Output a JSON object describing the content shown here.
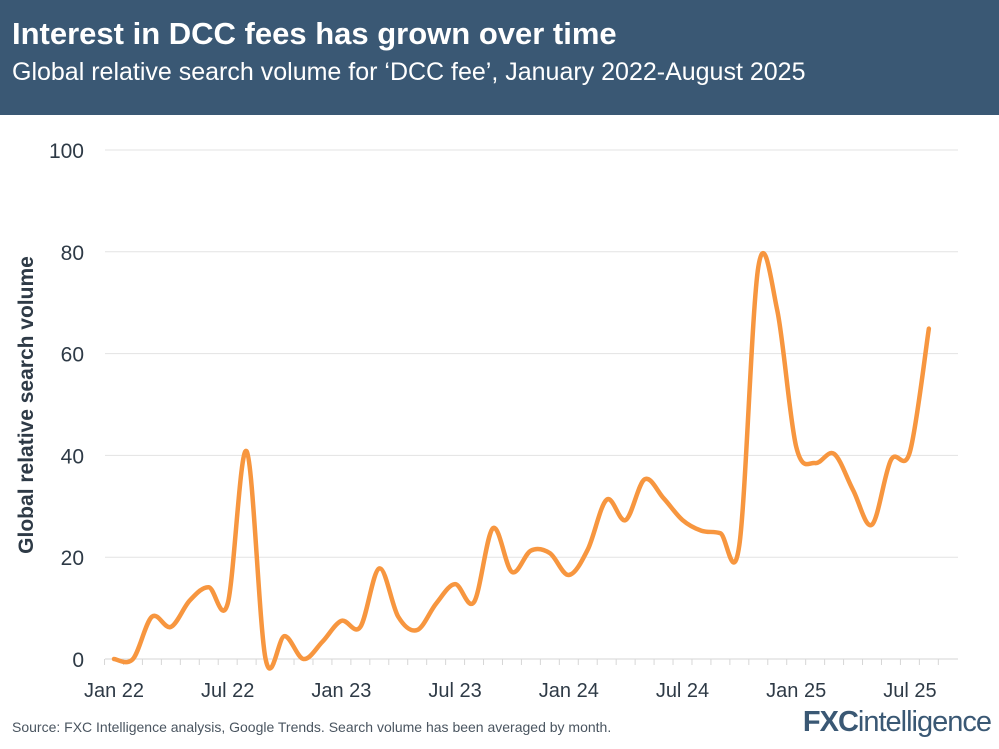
{
  "header": {
    "title": "Interest in DCC fees has grown over time",
    "subtitle": "Global relative search volume for ‘DCC fee’, January 2022-August 2025"
  },
  "footer": {
    "source": "Source: FXC Intelligence analysis, Google Trends. Search volume has been averaged by month.",
    "logo_bold": "FXC",
    "logo_light": "intelligence"
  },
  "colors": {
    "header_bg": "#3a5874",
    "line": "#f7963f",
    "grid": "#e3e3e3",
    "text": "#2e3a46"
  },
  "chart_data": {
    "type": "line",
    "title": "Interest in DCC fees has grown over time",
    "xlabel": "",
    "ylabel": "Global relative search volume",
    "ylim": [
      0,
      100
    ],
    "yticks": [
      0,
      20,
      40,
      60,
      80,
      100
    ],
    "xtick_labels": [
      {
        "index": 0,
        "label": "Jan 22"
      },
      {
        "index": 6,
        "label": "Jul 22"
      },
      {
        "index": 12,
        "label": "Jan 23"
      },
      {
        "index": 18,
        "label": "Jul 23"
      },
      {
        "index": 24,
        "label": "Jan 24"
      },
      {
        "index": 30,
        "label": "Jul 24"
      },
      {
        "index": 36,
        "label": "Jan 25"
      },
      {
        "index": 42,
        "label": "Jul 25"
      }
    ],
    "grid": true,
    "series": [
      {
        "name": "DCC fee",
        "start": "Jan 2022",
        "end": "Aug 2025",
        "values": [
          0,
          0,
          8.3,
          6.3,
          11.5,
          14.1,
          10.9,
          40.8,
          0,
          4.5,
          0,
          3.4,
          7.5,
          6.3,
          17.8,
          8.3,
          5.7,
          10.9,
          14.7,
          11.2,
          25.7,
          17.1,
          21.3,
          20.8,
          16.5,
          21.5,
          31.3,
          27.3,
          35.3,
          31.6,
          27.3,
          25.2,
          24.7,
          22.4,
          77,
          68.5,
          41.7,
          38.5,
          40.3,
          33.2,
          26.4,
          39.1,
          40.7,
          64.9
        ]
      }
    ]
  }
}
